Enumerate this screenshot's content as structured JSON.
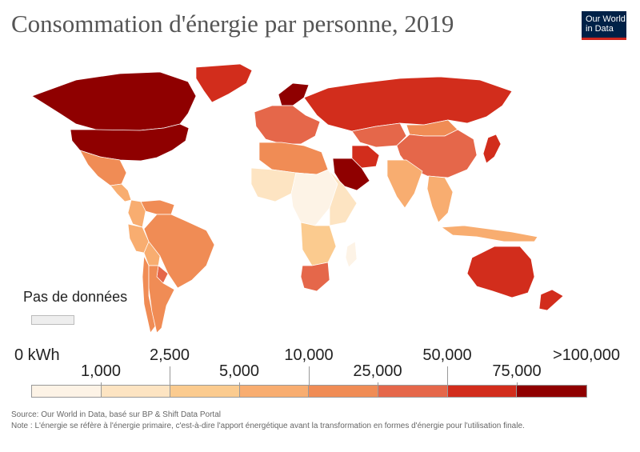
{
  "title": "Consommation d'énergie par personne, 2019",
  "logo": {
    "line1": "Our World",
    "line2": "in Data"
  },
  "no_data_label": "Pas de données",
  "legend": {
    "bins": [
      {
        "label": "0 kWh",
        "color": "#fdf3e6"
      },
      {
        "label": "1,000",
        "color": "#fde4c2"
      },
      {
        "label": "2,500",
        "color": "#fbcb8f"
      },
      {
        "label": "5,000",
        "color": "#f8ad70"
      },
      {
        "label": "10,000",
        "color": "#f08c55"
      },
      {
        "label": "25,000",
        "color": "#e5674a"
      },
      {
        "label": "50,000",
        "color": "#d22d1c"
      },
      {
        "label": "75,000",
        "color": "#8f0000"
      }
    ],
    "max_label": ">100,000",
    "no_data_color": "#eeeeee"
  },
  "source": "Source: Our World in Data, basé sur BP & Shift Data Portal",
  "note": "Note : L'énergie se réfère à l'énergie primaire, c'est-à-dire l'apport énergétique avant la transformation en formes d'énergie pour l'utilisation finale.",
  "regions": [
    {
      "name": "Canada",
      "bin": 7
    },
    {
      "name": "United States",
      "bin": 7
    },
    {
      "name": "Greenland",
      "bin": 6
    },
    {
      "name": "Mexico",
      "bin": 4
    },
    {
      "name": "Central America",
      "bin": 3
    },
    {
      "name": "Colombia",
      "bin": 3
    },
    {
      "name": "Venezuela",
      "bin": 4
    },
    {
      "name": "Brazil",
      "bin": 4
    },
    {
      "name": "Peru",
      "bin": 3
    },
    {
      "name": "Bolivia",
      "bin": 3
    },
    {
      "name": "Paraguay",
      "bin": 5
    },
    {
      "name": "Argentina",
      "bin": 4
    },
    {
      "name": "Chile",
      "bin": 4
    },
    {
      "name": "Norway",
      "bin": 7
    },
    {
      "name": "Western Europe",
      "bin": 5
    },
    {
      "name": "Russia",
      "bin": 6
    },
    {
      "name": "Kazakhstan",
      "bin": 5
    },
    {
      "name": "China",
      "bin": 5
    },
    {
      "name": "Mongolia",
      "bin": 4
    },
    {
      "name": "India",
      "bin": 3
    },
    {
      "name": "Saudi Arabia",
      "bin": 7
    },
    {
      "name": "Iran",
      "bin": 6
    },
    {
      "name": "Southeast Asia",
      "bin": 3
    },
    {
      "name": "Japan",
      "bin": 6
    },
    {
      "name": "Indonesia",
      "bin": 3
    },
    {
      "name": "Australia",
      "bin": 6
    },
    {
      "name": "New Zealand",
      "bin": 6
    },
    {
      "name": "North Africa",
      "bin": 4
    },
    {
      "name": "West Africa",
      "bin": 1
    },
    {
      "name": "Central Africa",
      "bin": 0
    },
    {
      "name": "East Africa",
      "bin": 1
    },
    {
      "name": "Southern Africa",
      "bin": 2
    },
    {
      "name": "South Africa",
      "bin": 5
    },
    {
      "name": "Madagascar",
      "bin": 0
    }
  ]
}
